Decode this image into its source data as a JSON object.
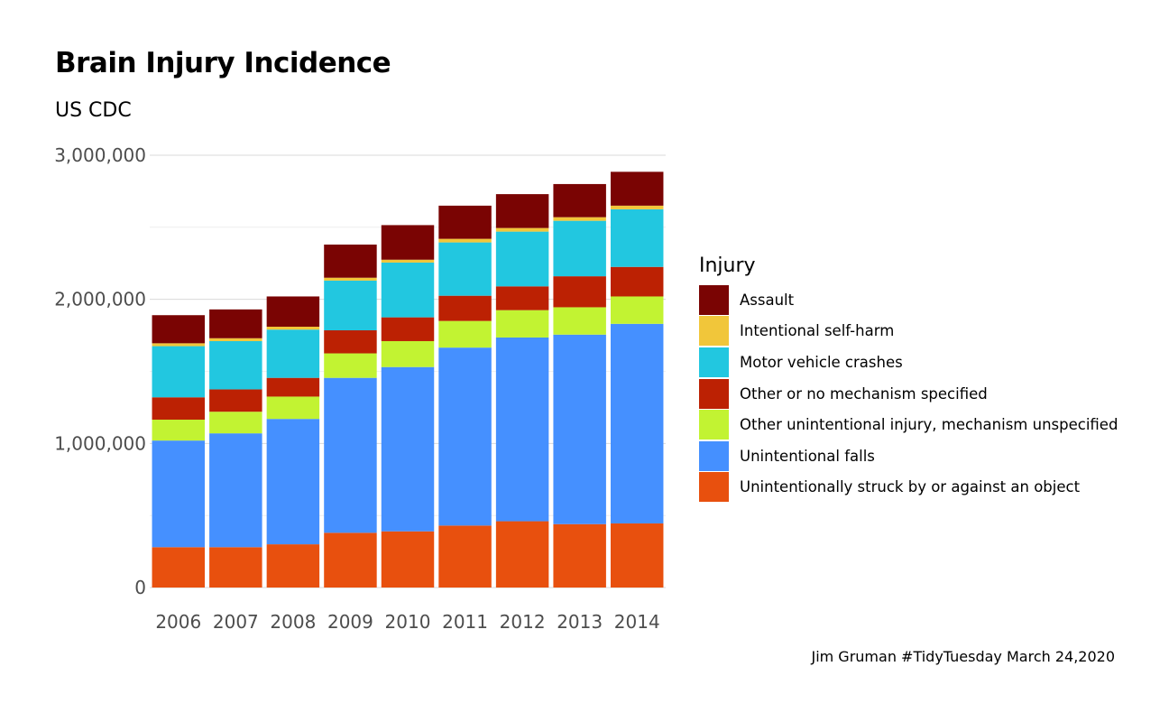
{
  "title": "Brain Injury Incidence",
  "subtitle": "US CDC",
  "caption": "Jim Gruman #TidyTuesday March 24,2020",
  "legend_title": "Injury",
  "chart_data": {
    "type": "bar",
    "stacked": true,
    "title": "Brain Injury Incidence",
    "subtitle": "US CDC",
    "xlabel": "",
    "ylabel": "",
    "ylim": [
      0,
      3000000
    ],
    "yticks": [
      0,
      1000000,
      2000000,
      3000000
    ],
    "ytick_labels": [
      "0",
      "1,000,000",
      "2,000,000",
      "3,000,000"
    ],
    "grid": true,
    "legend_position": "right",
    "categories": [
      "2006",
      "2007",
      "2008",
      "2009",
      "2010",
      "2011",
      "2012",
      "2013",
      "2014"
    ],
    "series": [
      {
        "name": "Unintentionally struck by or against an object",
        "color": "#E8500E",
        "values": [
          280000,
          280000,
          300000,
          380000,
          390000,
          430000,
          460000,
          440000,
          445000
        ]
      },
      {
        "name": "Unintentional falls",
        "color": "#4590FF",
        "values": [
          740000,
          790000,
          870000,
          1075000,
          1140000,
          1235000,
          1275000,
          1315000,
          1385000
        ]
      },
      {
        "name": "Other unintentional injury, mechanism unspecified",
        "color": "#C2F332",
        "values": [
          145000,
          150000,
          155000,
          170000,
          180000,
          185000,
          190000,
          190000,
          190000
        ]
      },
      {
        "name": "Other or no mechanism specified",
        "color": "#BC2103",
        "values": [
          155000,
          155000,
          130000,
          160000,
          165000,
          175000,
          165000,
          215000,
          205000
        ]
      },
      {
        "name": "Motor vehicle crashes",
        "color": "#22C7E0",
        "values": [
          355000,
          335000,
          335000,
          345000,
          380000,
          370000,
          380000,
          385000,
          400000
        ]
      },
      {
        "name": "Intentional self-harm",
        "color": "#F1C63A",
        "values": [
          20000,
          20000,
          20000,
          20000,
          20000,
          25000,
          25000,
          25000,
          25000
        ]
      },
      {
        "name": "Assault",
        "color": "#7A0403",
        "values": [
          195000,
          200000,
          210000,
          230000,
          240000,
          230000,
          235000,
          230000,
          235000
        ]
      }
    ]
  }
}
